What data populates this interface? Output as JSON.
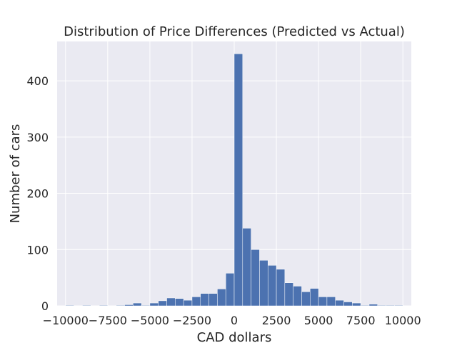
{
  "chart_data": {
    "type": "bar",
    "title": "Distribution of Price Differences (Predicted vs Actual)",
    "xlabel": "CAD dollars",
    "ylabel": "Number of cars",
    "xlim": [
      -10500,
      10500
    ],
    "ylim": [
      0,
      470
    ],
    "grid": true,
    "x_ticks": [
      -10000,
      -7500,
      -5000,
      -2500,
      0,
      2500,
      5000,
      7500,
      10000
    ],
    "x_tick_labels": [
      "−10000",
      "−7500",
      "−5000",
      "−2500",
      "0",
      "2500",
      "5000",
      "7500",
      "10000"
    ],
    "y_ticks": [
      0,
      100,
      200,
      300,
      400
    ],
    "y_tick_labels": [
      "0",
      "100",
      "200",
      "300",
      "400"
    ],
    "bin_width": 500,
    "bins": [
      {
        "x0": -10000,
        "count": 1
      },
      {
        "x0": -9500,
        "count": 0
      },
      {
        "x0": -9000,
        "count": 1
      },
      {
        "x0": -8500,
        "count": 0
      },
      {
        "x0": -8000,
        "count": 1
      },
      {
        "x0": -7500,
        "count": 0
      },
      {
        "x0": -7000,
        "count": 1
      },
      {
        "x0": -6500,
        "count": 2
      },
      {
        "x0": -6000,
        "count": 5
      },
      {
        "x0": -5500,
        "count": 1
      },
      {
        "x0": -5000,
        "count": 5
      },
      {
        "x0": -4500,
        "count": 9
      },
      {
        "x0": -4000,
        "count": 14
      },
      {
        "x0": -3500,
        "count": 13
      },
      {
        "x0": -3000,
        "count": 10
      },
      {
        "x0": -2500,
        "count": 16
      },
      {
        "x0": -2000,
        "count": 22
      },
      {
        "x0": -1500,
        "count": 22
      },
      {
        "x0": -1000,
        "count": 30
      },
      {
        "x0": -500,
        "count": 58
      },
      {
        "x0": 0,
        "count": 448
      },
      {
        "x0": 500,
        "count": 138
      },
      {
        "x0": 1000,
        "count": 100
      },
      {
        "x0": 1500,
        "count": 81
      },
      {
        "x0": 2000,
        "count": 72
      },
      {
        "x0": 2500,
        "count": 65
      },
      {
        "x0": 3000,
        "count": 41
      },
      {
        "x0": 3500,
        "count": 35
      },
      {
        "x0": 4000,
        "count": 25
      },
      {
        "x0": 4500,
        "count": 31
      },
      {
        "x0": 5000,
        "count": 16
      },
      {
        "x0": 5500,
        "count": 16
      },
      {
        "x0": 6000,
        "count": 10
      },
      {
        "x0": 6500,
        "count": 7
      },
      {
        "x0": 7000,
        "count": 5
      },
      {
        "x0": 7500,
        "count": 1
      },
      {
        "x0": 8000,
        "count": 3
      },
      {
        "x0": 8500,
        "count": 1
      },
      {
        "x0": 9000,
        "count": 1
      },
      {
        "x0": 9500,
        "count": 1
      }
    ]
  }
}
